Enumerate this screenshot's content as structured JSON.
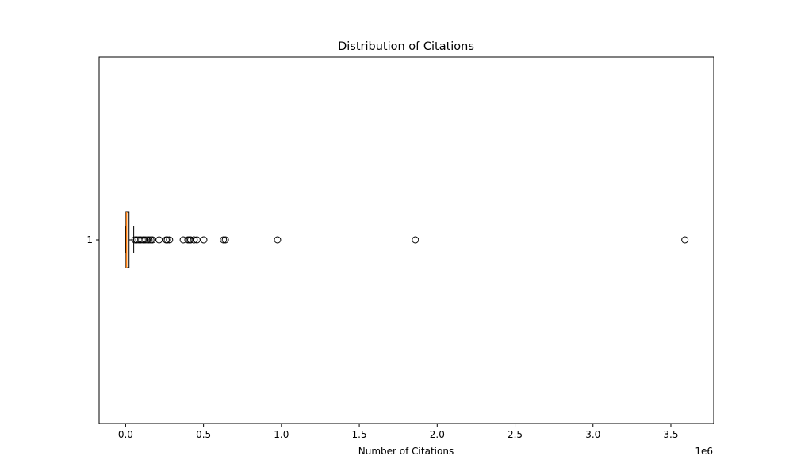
{
  "chart_data": {
    "type": "boxplot",
    "orientation": "horizontal",
    "title": "Distribution of Citations",
    "xlabel": "Number of Citations",
    "x_offset_label": "1e6",
    "x_scale_factor": 1000000,
    "xlim": [
      -170000,
      3775000
    ],
    "x_ticks": [
      0,
      500000,
      1000000,
      1500000,
      2000000,
      2500000,
      3000000,
      3500000
    ],
    "x_tick_labels": [
      "0.0",
      "0.5",
      "1.0",
      "1.5",
      "2.0",
      "2.5",
      "3.0",
      "3.5"
    ],
    "y_tick_labels": [
      "1"
    ],
    "grid": false,
    "box": {
      "whisker_low": 0,
      "q1": 2000,
      "median": 6000,
      "q3": 22000,
      "whisker_high": 52000
    },
    "outliers": [
      60000,
      72000,
      85000,
      98000,
      112000,
      125000,
      138000,
      150000,
      162000,
      172000,
      215000,
      260000,
      268000,
      282000,
      370000,
      400000,
      410000,
      418000,
      440000,
      458000,
      502000,
      628000,
      640000,
      975000,
      1860000,
      3590000
    ],
    "colors": {
      "box_fill": "#ffffff",
      "median_line": "#ff7f0e",
      "box_edge": "#000000",
      "outlier_edge": "#000000"
    }
  }
}
